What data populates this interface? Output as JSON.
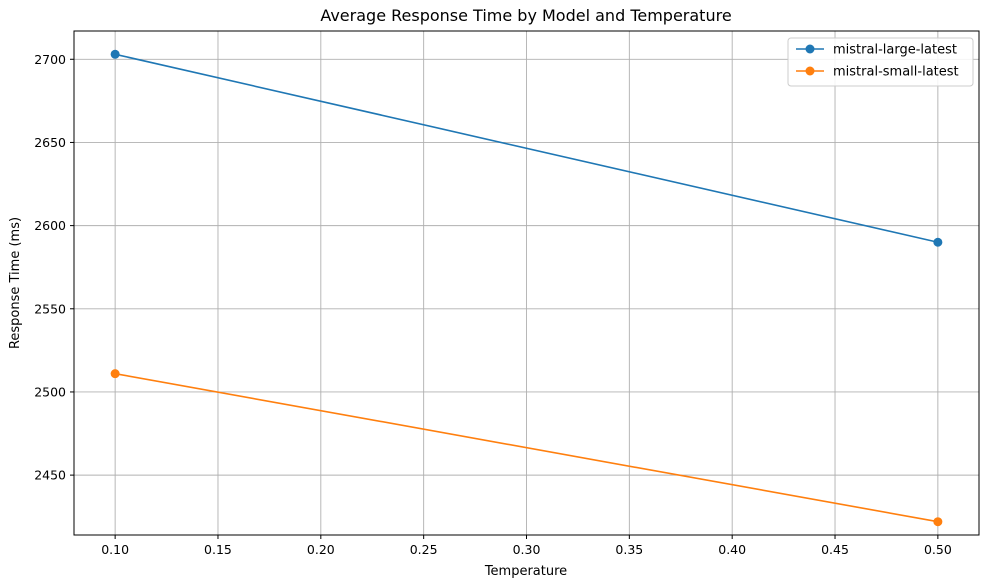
{
  "chart_data": {
    "type": "line",
    "title": "Average Response Time by Model and Temperature",
    "xlabel": "Temperature",
    "ylabel": "Response Time (ms)",
    "x": [
      0.1,
      0.5
    ],
    "xlim": [
      0.08,
      0.52
    ],
    "ylim": [
      2414,
      2717
    ],
    "xticks": [
      "0.10",
      "0.15",
      "0.20",
      "0.25",
      "0.30",
      "0.35",
      "0.40",
      "0.45",
      "0.50"
    ],
    "xtick_values": [
      0.1,
      0.15,
      0.2,
      0.25,
      0.3,
      0.35,
      0.4,
      0.45,
      0.5
    ],
    "yticks": [
      "2450",
      "2500",
      "2550",
      "2600",
      "2650",
      "2700"
    ],
    "ytick_values": [
      2450,
      2500,
      2550,
      2600,
      2650,
      2700
    ],
    "grid": true,
    "legend_position": "top-right",
    "series": [
      {
        "name": "mistral-large-latest",
        "color": "#1f77b4",
        "values": [
          2703,
          2590
        ]
      },
      {
        "name": "mistral-small-latest",
        "color": "#ff7f0e",
        "values": [
          2511,
          2422
        ]
      }
    ]
  }
}
